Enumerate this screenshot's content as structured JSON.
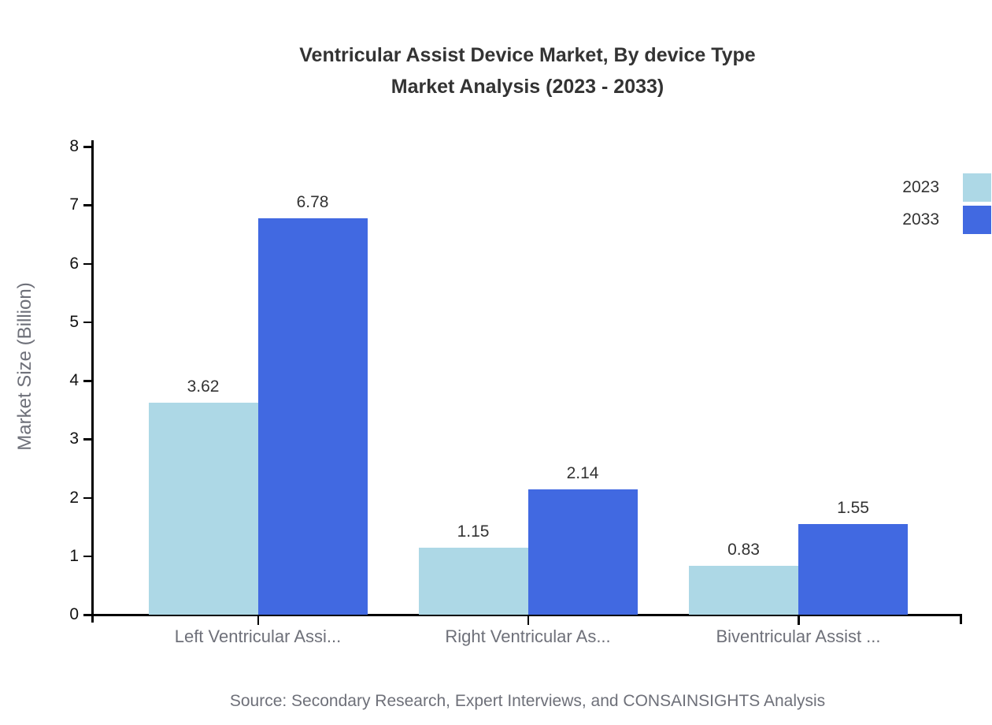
{
  "title": {
    "line1": "Ventricular Assist Device Market, By device Type",
    "line2": "Market Analysis (2023 - 2033)"
  },
  "source": "Source: Secondary Research, Expert Interviews, and CONSAINSIGHTS Analysis",
  "chart_data": {
    "type": "bar",
    "categories": [
      "Left Ventricular Assi...",
      "Right Ventricular As...",
      "Biventricular Assist ..."
    ],
    "series": [
      {
        "name": "2023",
        "color": "#ADD8E6",
        "values": [
          3.62,
          1.15,
          0.83
        ]
      },
      {
        "name": "2033",
        "color": "#4169E1",
        "values": [
          6.78,
          2.14,
          1.55
        ]
      }
    ],
    "xlabel": "",
    "ylabel": "Market Size (Billion)",
    "ylim": [
      0,
      8
    ],
    "yticks": [
      0,
      1,
      2,
      3,
      4,
      5,
      6,
      7,
      8
    ],
    "grid": false,
    "legend_position": "top-right",
    "value_labels": true,
    "value_label_format": "2-decimals"
  },
  "colors": {
    "axis": "#000000",
    "title_text": "#333333",
    "y_tick_label": "#111111",
    "category_label": "#6E7079",
    "value_label": "#333333",
    "source_text": "#6E7079",
    "series_2023": "#ADD8E6",
    "series_2033": "#4169E1"
  }
}
